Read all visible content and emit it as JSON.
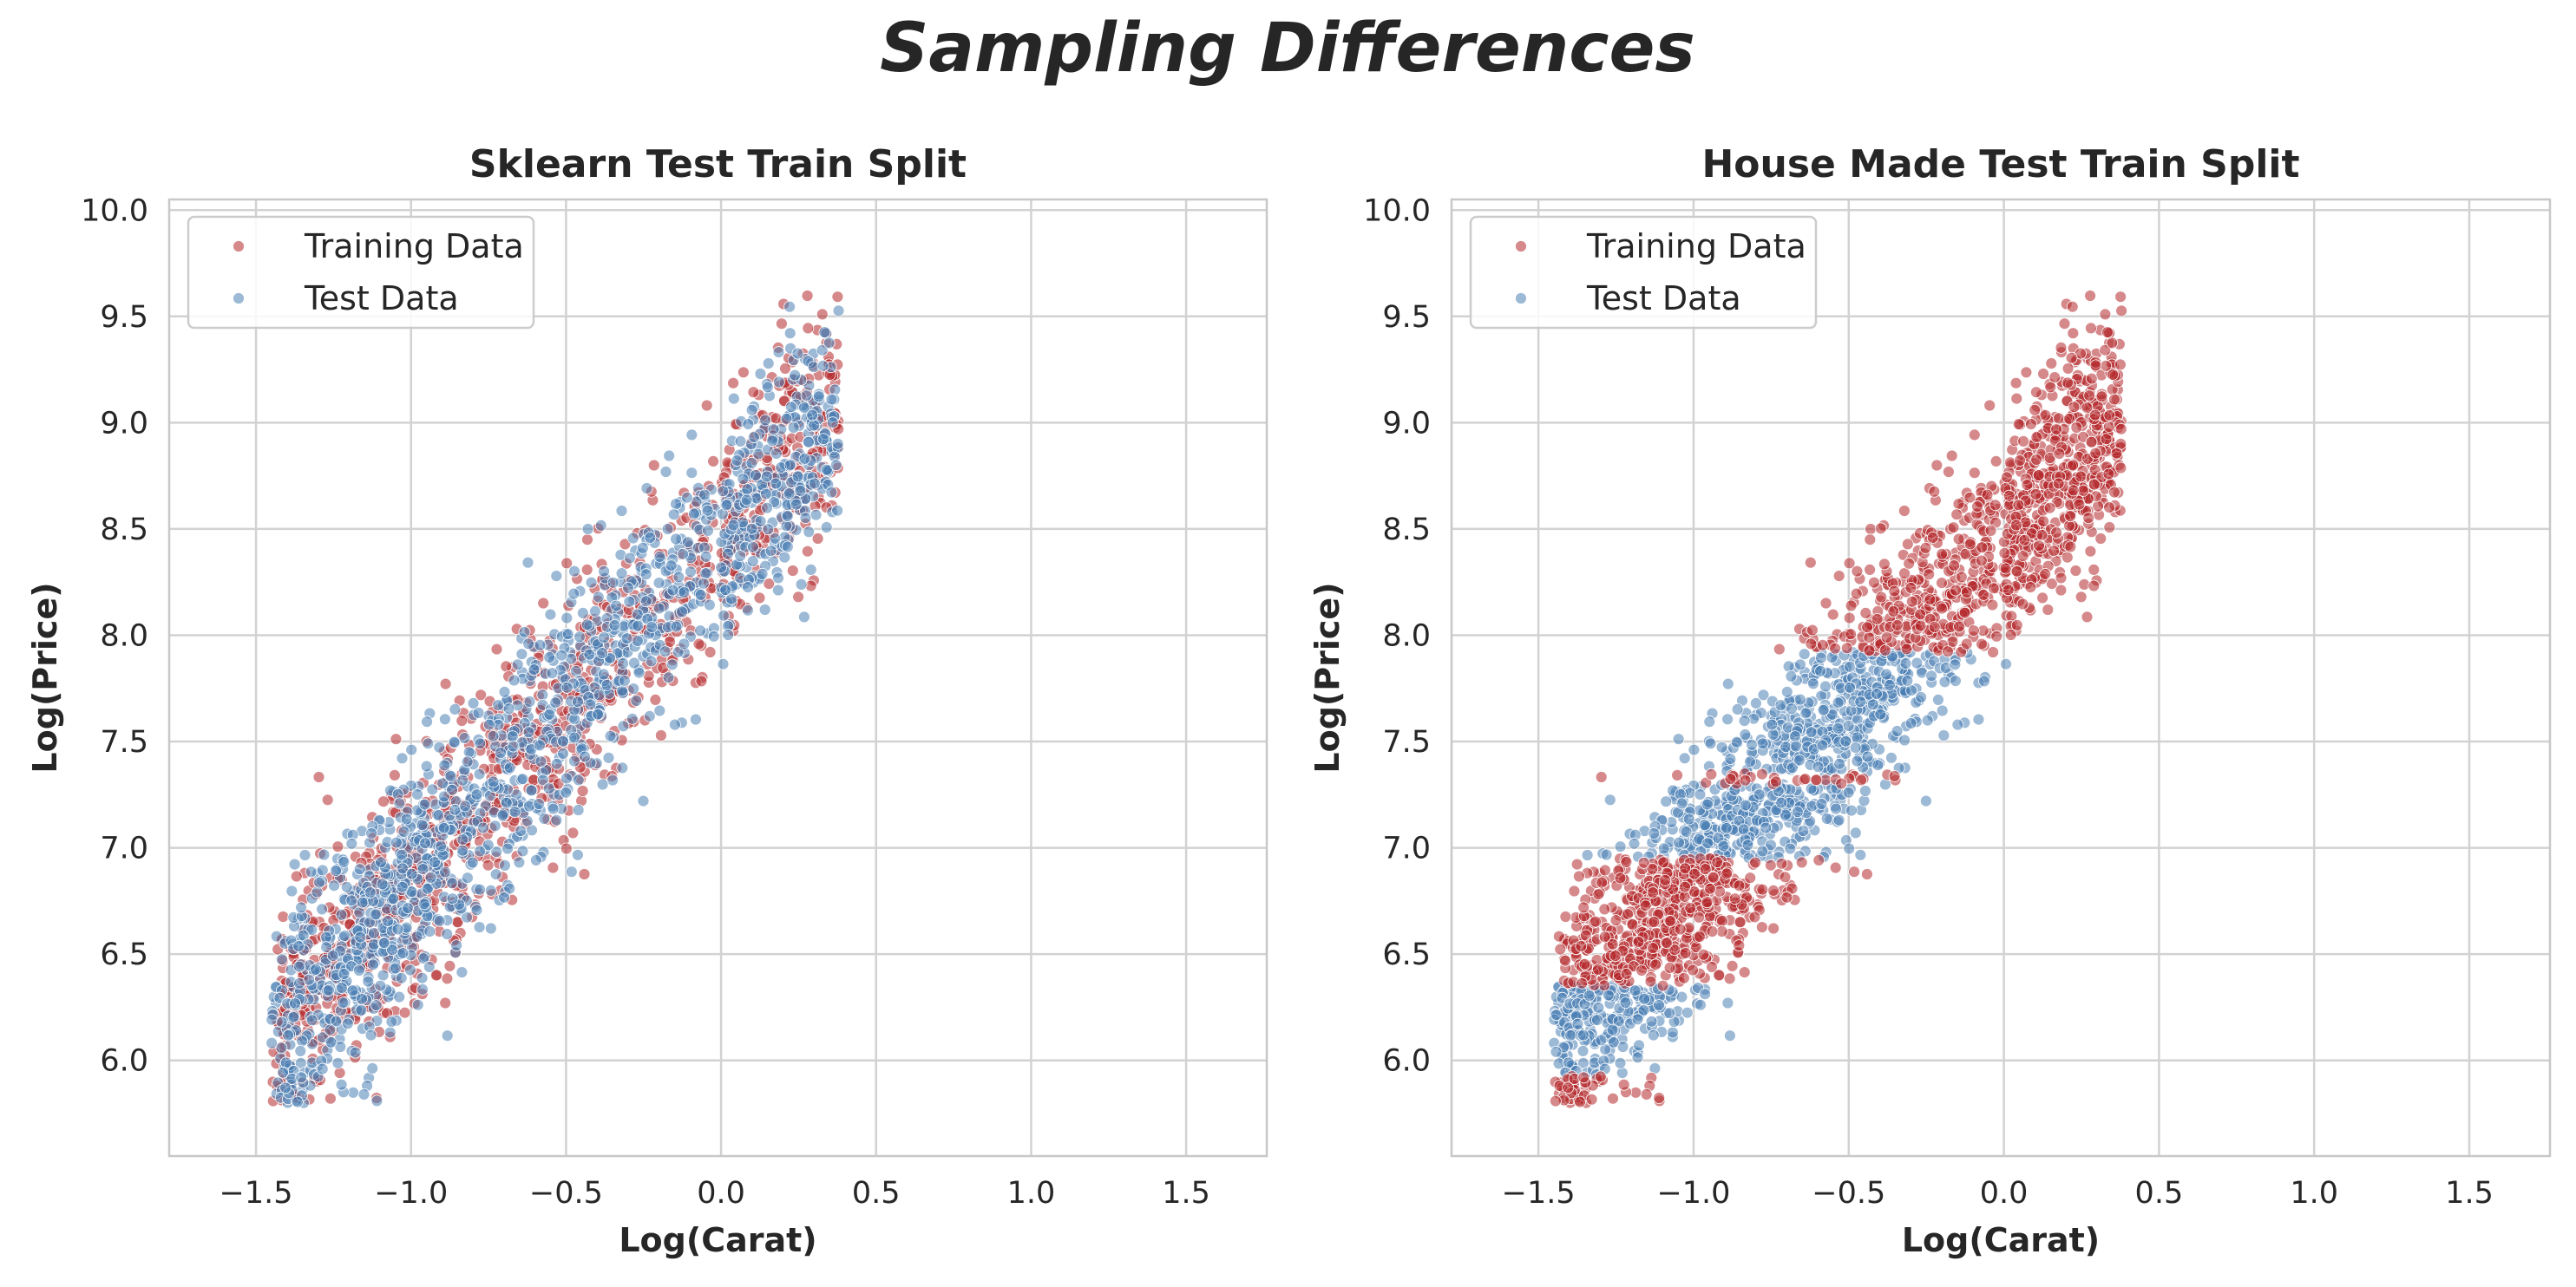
{
  "figure": {
    "title": "Sampling Differences"
  },
  "colors": {
    "train": "#b5282c",
    "test": "#4a7fb4",
    "grid": "#d2d2d2",
    "axes": "#c8c8c8",
    "text": "#262626"
  },
  "chart_data": [
    {
      "type": "scatter",
      "title": "Sklearn Test Train Split",
      "xlabel": "Log(Carat)",
      "ylabel": "Log(Price)",
      "xlim": [
        -1.78,
        1.76
      ],
      "ylim": [
        5.55,
        10.05
      ],
      "xticks": [
        "−1.5",
        "−1.0",
        "−0.5",
        "0.0",
        "0.5",
        "1.0",
        "1.5"
      ],
      "xtick_values": [
        -1.5,
        -1.0,
        -0.5,
        0.0,
        0.5,
        1.0,
        1.5
      ],
      "yticks": [
        "6.0",
        "6.5",
        "7.0",
        "7.5",
        "8.0",
        "8.5",
        "9.0",
        "9.5",
        "10.0"
      ],
      "ytick_values": [
        6.0,
        6.5,
        7.0,
        7.5,
        8.0,
        8.5,
        9.0,
        9.5,
        10.0
      ],
      "grid": true,
      "legend_position": "top-left",
      "split_rule": "random",
      "series": [
        {
          "name": "Training Data",
          "color": "#b5282c"
        },
        {
          "name": "Test Data",
          "color": "#4a7fb4"
        }
      ]
    },
    {
      "type": "scatter",
      "title": "House Made Test Train Split",
      "xlabel": "Log(Carat)",
      "ylabel": "Log(Price)",
      "xlim": [
        -1.78,
        1.76
      ],
      "ylim": [
        5.55,
        10.05
      ],
      "xticks": [
        "−1.5",
        "−1.0",
        "−0.5",
        "0.0",
        "0.5",
        "1.0",
        "1.5"
      ],
      "xtick_values": [
        -1.5,
        -1.0,
        -0.5,
        0.0,
        0.5,
        1.0,
        1.5
      ],
      "yticks": [
        "6.0",
        "6.5",
        "7.0",
        "7.5",
        "8.0",
        "8.5",
        "9.0",
        "9.5",
        "10.0"
      ],
      "ytick_values": [
        6.0,
        6.5,
        7.0,
        7.5,
        8.0,
        8.5,
        9.0,
        9.5,
        10.0
      ],
      "grid": true,
      "legend_position": "top-left",
      "split_rule": "price-bands",
      "test_price_bands": [
        [
          5.93,
          6.35
        ],
        [
          6.95,
          7.3
        ],
        [
          7.35,
          7.92
        ]
      ],
      "series": [
        {
          "name": "Training Data",
          "color": "#b5282c"
        },
        {
          "name": "Test Data",
          "color": "#4a7fb4"
        }
      ]
    }
  ]
}
